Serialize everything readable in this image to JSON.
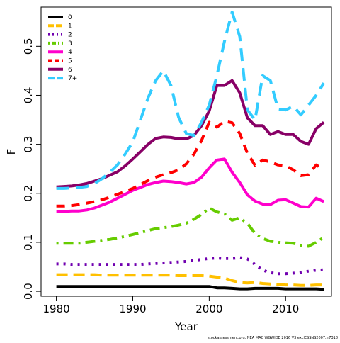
{
  "chart_data": {
    "type": "line",
    "xlabel": "Year",
    "ylabel": "F",
    "xlim": [
      1978,
      2016
    ],
    "ylim": [
      -0.01,
      0.58
    ],
    "xticks": [
      1980,
      1990,
      2000,
      2010
    ],
    "yticks": [
      0.0,
      0.1,
      0.2,
      0.3,
      0.4,
      0.5
    ],
    "ytick_labels": [
      "0.0",
      "0.1",
      "0.2",
      "0.3",
      "0.4",
      "0.5"
    ],
    "legend_position": "top-left",
    "credit": "stockassessment.org, NEA MAC WGWIDE 2016 V3 exclESSNS2007, r7318",
    "series": [
      {
        "name": "0",
        "color": "#000000",
        "dash": "solid",
        "x": [
          1980,
          1981,
          1982,
          1983,
          1984,
          1985,
          1986,
          1987,
          1988,
          1989,
          1990,
          1991,
          1992,
          1993,
          1994,
          1995,
          1996,
          1997,
          1998,
          1999,
          2000,
          2001,
          2002,
          2003,
          2004,
          2005,
          2006,
          2007,
          2008,
          2009,
          2010,
          2011,
          2012,
          2013,
          2014,
          2015
        ],
        "y": [
          0.01,
          0.01,
          0.01,
          0.01,
          0.01,
          0.01,
          0.01,
          0.01,
          0.01,
          0.01,
          0.01,
          0.01,
          0.01,
          0.01,
          0.01,
          0.01,
          0.01,
          0.01,
          0.01,
          0.01,
          0.01,
          0.007,
          0.007,
          0.006,
          0.005,
          0.005,
          0.006,
          0.006,
          0.006,
          0.006,
          0.005,
          0.005,
          0.005,
          0.005,
          0.005,
          0.004
        ]
      },
      {
        "name": "1",
        "color": "#FFC000",
        "dash": "long",
        "x": [
          1980,
          1981,
          1982,
          1983,
          1984,
          1985,
          1986,
          1987,
          1988,
          1989,
          1990,
          1991,
          1992,
          1993,
          1994,
          1995,
          1996,
          1997,
          1998,
          1999,
          2000,
          2001,
          2002,
          2003,
          2004,
          2005,
          2006,
          2007,
          2008,
          2009,
          2010,
          2011,
          2012,
          2013,
          2014,
          2015
        ],
        "y": [
          0.034,
          0.034,
          0.034,
          0.034,
          0.034,
          0.034,
          0.033,
          0.033,
          0.033,
          0.033,
          0.033,
          0.033,
          0.033,
          0.033,
          0.033,
          0.033,
          0.032,
          0.032,
          0.032,
          0.032,
          0.031,
          0.029,
          0.027,
          0.022,
          0.018,
          0.017,
          0.018,
          0.016,
          0.015,
          0.014,
          0.013,
          0.013,
          0.012,
          0.012,
          0.013,
          0.013
        ]
      },
      {
        "name": "2",
        "color": "#7000B0",
        "dash": "dot",
        "x": [
          1980,
          1981,
          1982,
          1983,
          1984,
          1985,
          1986,
          1987,
          1988,
          1989,
          1990,
          1991,
          1992,
          1993,
          1994,
          1995,
          1996,
          1997,
          1998,
          1999,
          2000,
          2001,
          2002,
          2003,
          2004,
          2005,
          2006,
          2007,
          2008,
          2009,
          2010,
          2011,
          2012,
          2013,
          2014,
          2015
        ],
        "y": [
          0.056,
          0.056,
          0.055,
          0.055,
          0.055,
          0.055,
          0.055,
          0.055,
          0.055,
          0.055,
          0.055,
          0.055,
          0.056,
          0.057,
          0.058,
          0.059,
          0.06,
          0.061,
          0.063,
          0.065,
          0.067,
          0.068,
          0.067,
          0.067,
          0.069,
          0.066,
          0.055,
          0.043,
          0.038,
          0.036,
          0.036,
          0.037,
          0.039,
          0.041,
          0.043,
          0.044
        ]
      },
      {
        "name": "3",
        "color": "#66CC00",
        "dash": "dotdash",
        "x": [
          1980,
          1981,
          1982,
          1983,
          1984,
          1985,
          1986,
          1987,
          1988,
          1989,
          1990,
          1991,
          1992,
          1993,
          1994,
          1995,
          1996,
          1997,
          1998,
          1999,
          2000,
          2001,
          2002,
          2003,
          2004,
          2005,
          2006,
          2007,
          2008,
          2009,
          2010,
          2011,
          2012,
          2013,
          2014,
          2015
        ],
        "y": [
          0.098,
          0.098,
          0.098,
          0.098,
          0.1,
          0.102,
          0.104,
          0.106,
          0.109,
          0.112,
          0.116,
          0.12,
          0.124,
          0.128,
          0.13,
          0.132,
          0.135,
          0.139,
          0.147,
          0.157,
          0.17,
          0.162,
          0.158,
          0.145,
          0.15,
          0.139,
          0.118,
          0.108,
          0.102,
          0.1,
          0.099,
          0.098,
          0.094,
          0.092,
          0.1,
          0.11
        ]
      },
      {
        "name": "4",
        "color": "#FF00CC",
        "dash": "solid",
        "x": [
          1980,
          1981,
          1982,
          1983,
          1984,
          1985,
          1986,
          1987,
          1988,
          1989,
          1990,
          1991,
          1992,
          1993,
          1994,
          1995,
          1996,
          1997,
          1998,
          1999,
          2000,
          2001,
          2002,
          2003,
          2004,
          2005,
          2006,
          2007,
          2008,
          2009,
          2010,
          2011,
          2012,
          2013,
          2014,
          2015
        ],
        "y": [
          0.163,
          0.163,
          0.164,
          0.164,
          0.166,
          0.17,
          0.176,
          0.182,
          0.19,
          0.198,
          0.206,
          0.212,
          0.218,
          0.222,
          0.225,
          0.224,
          0.222,
          0.219,
          0.222,
          0.233,
          0.252,
          0.268,
          0.27,
          0.243,
          0.222,
          0.197,
          0.184,
          0.178,
          0.177,
          0.186,
          0.187,
          0.18,
          0.173,
          0.172,
          0.19,
          0.183
        ]
      },
      {
        "name": "5",
        "color": "#FF0000",
        "dash": "dash",
        "x": [
          1980,
          1981,
          1982,
          1983,
          1984,
          1985,
          1986,
          1987,
          1988,
          1989,
          1990,
          1991,
          1992,
          1993,
          1994,
          1995,
          1996,
          1997,
          1998,
          1999,
          2000,
          2001,
          2002,
          2003,
          2004,
          2005,
          2006,
          2007,
          2008,
          2009,
          2010,
          2011,
          2012,
          2013,
          2014,
          2015
        ],
        "y": [
          0.174,
          0.174,
          0.175,
          0.177,
          0.18,
          0.183,
          0.187,
          0.192,
          0.198,
          0.204,
          0.21,
          0.218,
          0.226,
          0.233,
          0.238,
          0.242,
          0.248,
          0.26,
          0.28,
          0.308,
          0.345,
          0.335,
          0.347,
          0.344,
          0.322,
          0.282,
          0.257,
          0.268,
          0.264,
          0.258,
          0.256,
          0.248,
          0.236,
          0.238,
          0.258,
          0.248
        ]
      },
      {
        "name": "6",
        "color": "#880066",
        "dash": "solid",
        "x": [
          1980,
          1981,
          1982,
          1983,
          1984,
          1985,
          1986,
          1987,
          1988,
          1989,
          1990,
          1991,
          1992,
          1993,
          1994,
          1995,
          1996,
          1997,
          1998,
          1999,
          2000,
          2001,
          2002,
          2003,
          2004,
          2005,
          2006,
          2007,
          2008,
          2009,
          2010,
          2011,
          2012,
          2013,
          2014,
          2015
        ],
        "y": [
          0.213,
          0.214,
          0.215,
          0.217,
          0.22,
          0.225,
          0.23,
          0.237,
          0.244,
          0.256,
          0.27,
          0.285,
          0.3,
          0.312,
          0.315,
          0.314,
          0.311,
          0.311,
          0.318,
          0.338,
          0.368,
          0.42,
          0.42,
          0.43,
          0.405,
          0.354,
          0.338,
          0.338,
          0.32,
          0.326,
          0.32,
          0.32,
          0.306,
          0.3,
          0.332,
          0.345
        ]
      },
      {
        "name": "7+",
        "color": "#33CCFF",
        "dash": "longdash",
        "x": [
          1980,
          1981,
          1982,
          1983,
          1984,
          1985,
          1986,
          1987,
          1988,
          1989,
          1990,
          1991,
          1992,
          1993,
          1994,
          1995,
          1996,
          1997,
          1998,
          1999,
          2000,
          2001,
          2002,
          2003,
          2004,
          2005,
          2006,
          2007,
          2008,
          2009,
          2010,
          2011,
          2012,
          2013,
          2014,
          2015
        ],
        "y": [
          0.21,
          0.21,
          0.211,
          0.212,
          0.214,
          0.22,
          0.23,
          0.243,
          0.258,
          0.28,
          0.305,
          0.35,
          0.395,
          0.43,
          0.45,
          0.42,
          0.355,
          0.322,
          0.318,
          0.345,
          0.38,
          0.44,
          0.51,
          0.57,
          0.52,
          0.37,
          0.35,
          0.44,
          0.43,
          0.372,
          0.37,
          0.378,
          0.36,
          0.38,
          0.4,
          0.425
        ]
      }
    ]
  }
}
